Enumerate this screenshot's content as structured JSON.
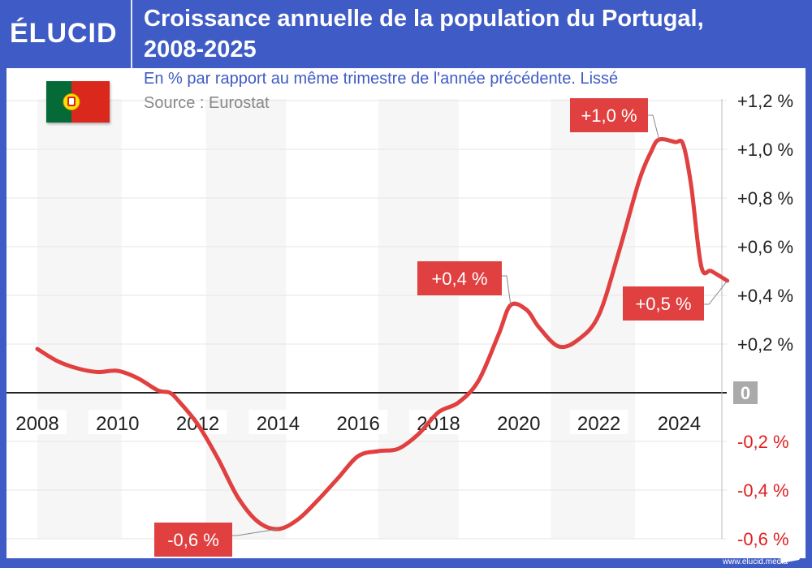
{
  "header": {
    "logo": "ÉLUCID",
    "title_line1": "Croissance annuelle de la population du Portugal,",
    "title_line2": "2008-2025"
  },
  "subtitle": "En % par rapport au même trimestre de l'année précédente. Lissé",
  "source": "Source : Eurostat",
  "footer": "www.elucid.media",
  "flag": "portugal-flag",
  "colors": {
    "frame": "#3f5cc6",
    "line": "#e04040",
    "label_bg": "#e04040",
    "negative_tick": "#e02020",
    "zero_badge": "#aaaaaa"
  },
  "chart_data": {
    "type": "line",
    "title": "Croissance annuelle de la population du Portugal, 2008-2025",
    "xlim": [
      2008,
      2025.2
    ],
    "ylim": [
      -0.6,
      1.2
    ],
    "y_ticks": [
      {
        "v": 1.2,
        "t": "+1,2 %"
      },
      {
        "v": 1.0,
        "t": "+1,0 %"
      },
      {
        "v": 0.8,
        "t": "+0,8 %"
      },
      {
        "v": 0.6,
        "t": "+0,6 %"
      },
      {
        "v": 0.4,
        "t": "+0,4 %"
      },
      {
        "v": 0.2,
        "t": "+0,2 %"
      },
      {
        "v": 0,
        "t": "0"
      },
      {
        "v": -0.2,
        "t": "-0,2 %"
      },
      {
        "v": -0.4,
        "t": "-0,4 %"
      },
      {
        "v": -0.6,
        "t": "-0,6 %"
      }
    ],
    "x_ticks": [
      "2008",
      "2010",
      "2012",
      "2014",
      "2016",
      "2018",
      "2020",
      "2022",
      "2024"
    ],
    "grid": true,
    "y_axis_side": "right",
    "shaded_bands": [
      [
        2008,
        2010.1
      ],
      [
        2012.2,
        2014.2
      ],
      [
        2016.5,
        2018.5
      ],
      [
        2020.8,
        2022.9
      ]
    ],
    "x": [
      2008,
      2008.5,
      2009,
      2009.5,
      2010,
      2010.5,
      2011,
      2011.3,
      2011.5,
      2012,
      2012.5,
      2013,
      2013.5,
      2014,
      2014.5,
      2015,
      2015.5,
      2016,
      2016.5,
      2017,
      2017.5,
      2018,
      2018.5,
      2019,
      2019.5,
      2019.8,
      2020.2,
      2020.5,
      2021,
      2021.5,
      2022,
      2022.5,
      2023,
      2023.3,
      2023.5,
      2023.9,
      2024.1,
      2024.3,
      2024.55,
      2024.8,
      2025.2
    ],
    "values": [
      0.18,
      0.13,
      0.1,
      0.085,
      0.09,
      0.06,
      0.01,
      0.0,
      -0.03,
      -0.13,
      -0.27,
      -0.43,
      -0.53,
      -0.56,
      -0.52,
      -0.44,
      -0.35,
      -0.26,
      -0.24,
      -0.23,
      -0.17,
      -0.08,
      -0.04,
      0.05,
      0.24,
      0.36,
      0.34,
      0.27,
      0.19,
      0.22,
      0.32,
      0.58,
      0.87,
      0.99,
      1.04,
      1.03,
      1.02,
      0.85,
      0.52,
      0.5,
      0.46
    ],
    "annotations": [
      {
        "text": "-0,6 %",
        "x": 2014,
        "y": -0.56
      },
      {
        "text": "+0,4 %",
        "x": 2019.8,
        "y": 0.36
      },
      {
        "text": "+1,0 %",
        "x": 2023.5,
        "y": 1.04
      },
      {
        "text": "+0,5 %",
        "x": 2025.2,
        "y": 0.46
      }
    ]
  }
}
